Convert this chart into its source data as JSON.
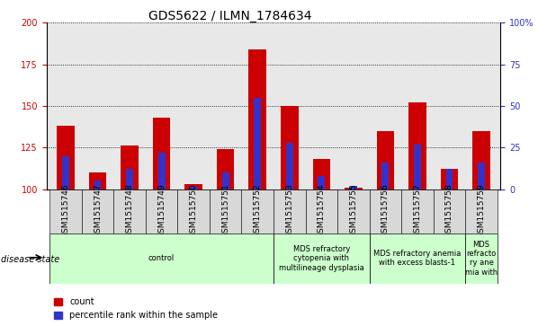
{
  "title": "GDS5622 / ILMN_1784634",
  "samples": [
    "GSM1515746",
    "GSM1515747",
    "GSM1515748",
    "GSM1515749",
    "GSM1515750",
    "GSM1515751",
    "GSM1515752",
    "GSM1515753",
    "GSM1515754",
    "GSM1515755",
    "GSM1515756",
    "GSM1515757",
    "GSM1515758",
    "GSM1515759"
  ],
  "counts": [
    138,
    110,
    126,
    143,
    103,
    124,
    184,
    150,
    118,
    101,
    135,
    152,
    112,
    135
  ],
  "percentiles": [
    20,
    5,
    12,
    22,
    2,
    10,
    55,
    28,
    8,
    2,
    16,
    27,
    12,
    16
  ],
  "ylim_left": [
    100,
    200
  ],
  "ylim_right": [
    0,
    100
  ],
  "yticks_left": [
    100,
    125,
    150,
    175,
    200
  ],
  "yticks_right": [
    0,
    25,
    50,
    75,
    100
  ],
  "bar_color": "#cc0000",
  "percentile_color": "#3333cc",
  "background_color": "#ffffff",
  "plot_bg_color": "#e8e8e8",
  "grid_color": "#000000",
  "bar_width": 0.55,
  "percentile_bar_width": 0.22,
  "disease_groups": [
    {
      "label": "control",
      "start": 0,
      "end": 7
    },
    {
      "label": "MDS refractory\ncytopenia with\nmultilineage dysplasia",
      "start": 7,
      "end": 10
    },
    {
      "label": "MDS refractory anemia\nwith excess blasts-1",
      "start": 10,
      "end": 13
    },
    {
      "label": "MDS\nrefracto\nry ane\nmia with",
      "start": 13,
      "end": 14
    }
  ],
  "disease_cell_color": "#ccffcc",
  "sample_cell_color": "#d8d8d8",
  "tick_label_color_left": "#cc0000",
  "tick_label_color_right": "#3333cc",
  "disease_state_label": "disease state",
  "legend_count_label": "count",
  "legend_percentile_label": "percentile rank within the sample",
  "title_fontsize": 10,
  "axis_fontsize": 7,
  "legend_fontsize": 7,
  "disease_fontsize": 6,
  "sample_fontsize": 6.5
}
